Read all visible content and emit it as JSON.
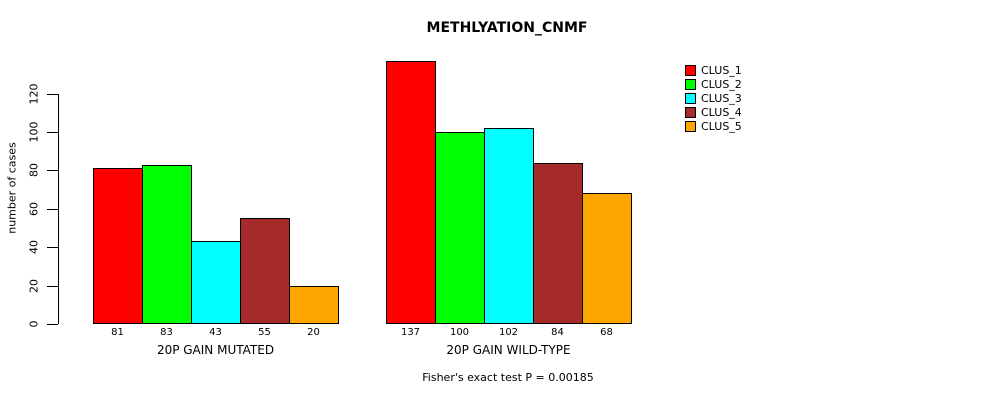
{
  "chart_data": {
    "type": "bar",
    "title": "METHLYATION_CNMF",
    "ylabel": "number of cases",
    "xlabel": "",
    "yticks": [
      0,
      20,
      40,
      60,
      80,
      100,
      120
    ],
    "ylim": [
      0,
      140
    ],
    "grid": false,
    "legend_position": "right",
    "bar_value_labels_shown": true,
    "categories": [
      "20P GAIN MUTATED",
      "20P GAIN WILD-TYPE"
    ],
    "series": [
      {
        "name": "CLUS_1",
        "color": "#FF0000",
        "values": [
          81,
          137
        ]
      },
      {
        "name": "CLUS_2",
        "color": "#00FF00",
        "values": [
          83,
          100
        ]
      },
      {
        "name": "CLUS_3",
        "color": "#00FFFF",
        "values": [
          43,
          102
        ]
      },
      {
        "name": "CLUS_4",
        "color": "#A52A2A",
        "values": [
          55,
          84
        ]
      },
      {
        "name": "CLUS_5",
        "color": "#FFA500",
        "values": [
          20,
          68
        ]
      }
    ],
    "annotation": "Fisher's exact test P = 0.00185"
  }
}
